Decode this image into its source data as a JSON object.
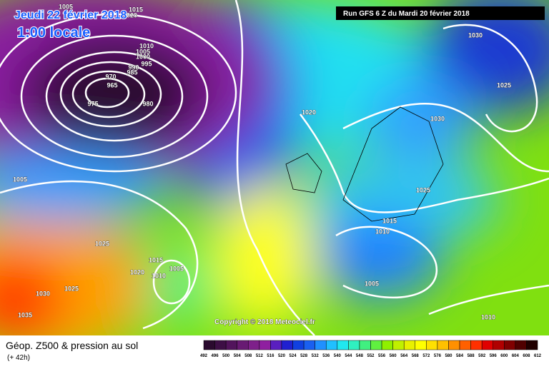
{
  "header": {
    "title": "Jeudi 22 février 2018",
    "time": "1:00 locale",
    "run": "Run GFS 6 Z du Mardi 20 février 2018"
  },
  "isobar_labels": [
    "1005",
    "1015",
    "1020",
    "1010",
    "1005",
    "1000",
    "995",
    "990",
    "985",
    "970",
    "965",
    "975",
    "980",
    "1020",
    "1030",
    "1025",
    "1030",
    "1005",
    "1025",
    "1015",
    "1010",
    "1025",
    "1015",
    "1005",
    "1010",
    "1020",
    "1005",
    "1030",
    "1025",
    "1035",
    "1010"
  ],
  "copyright": "Copyright © 2018 Meteociel.fr",
  "footer": {
    "title": "Géop. Z500 & pression au sol",
    "lead": "(+ 42h)"
  },
  "scale": {
    "labels": [
      "492",
      "496",
      "500",
      "504",
      "508",
      "512",
      "516",
      "520",
      "524",
      "528",
      "532",
      "536",
      "540",
      "544",
      "548",
      "552",
      "556",
      "560",
      "564",
      "568",
      "572",
      "576",
      "580",
      "584",
      "588",
      "592",
      "596",
      "600",
      "604",
      "608",
      "612"
    ],
    "colors": [
      "#2a0a2e",
      "#3d0f45",
      "#52145c",
      "#681a73",
      "#7e208a",
      "#8f1fa0",
      "#5a1fbf",
      "#2020d0",
      "#1040e0",
      "#1a60f0",
      "#2090ff",
      "#20c0ff",
      "#20e8f0",
      "#30f0c0",
      "#40f080",
      "#60f040",
      "#90f000",
      "#c0f000",
      "#e8f000",
      "#ffff00",
      "#ffe000",
      "#ffc000",
      "#ff9000",
      "#ff6000",
      "#ff3000",
      "#e00000",
      "#b00000",
      "#800000",
      "#500000",
      "#200000"
    ]
  }
}
